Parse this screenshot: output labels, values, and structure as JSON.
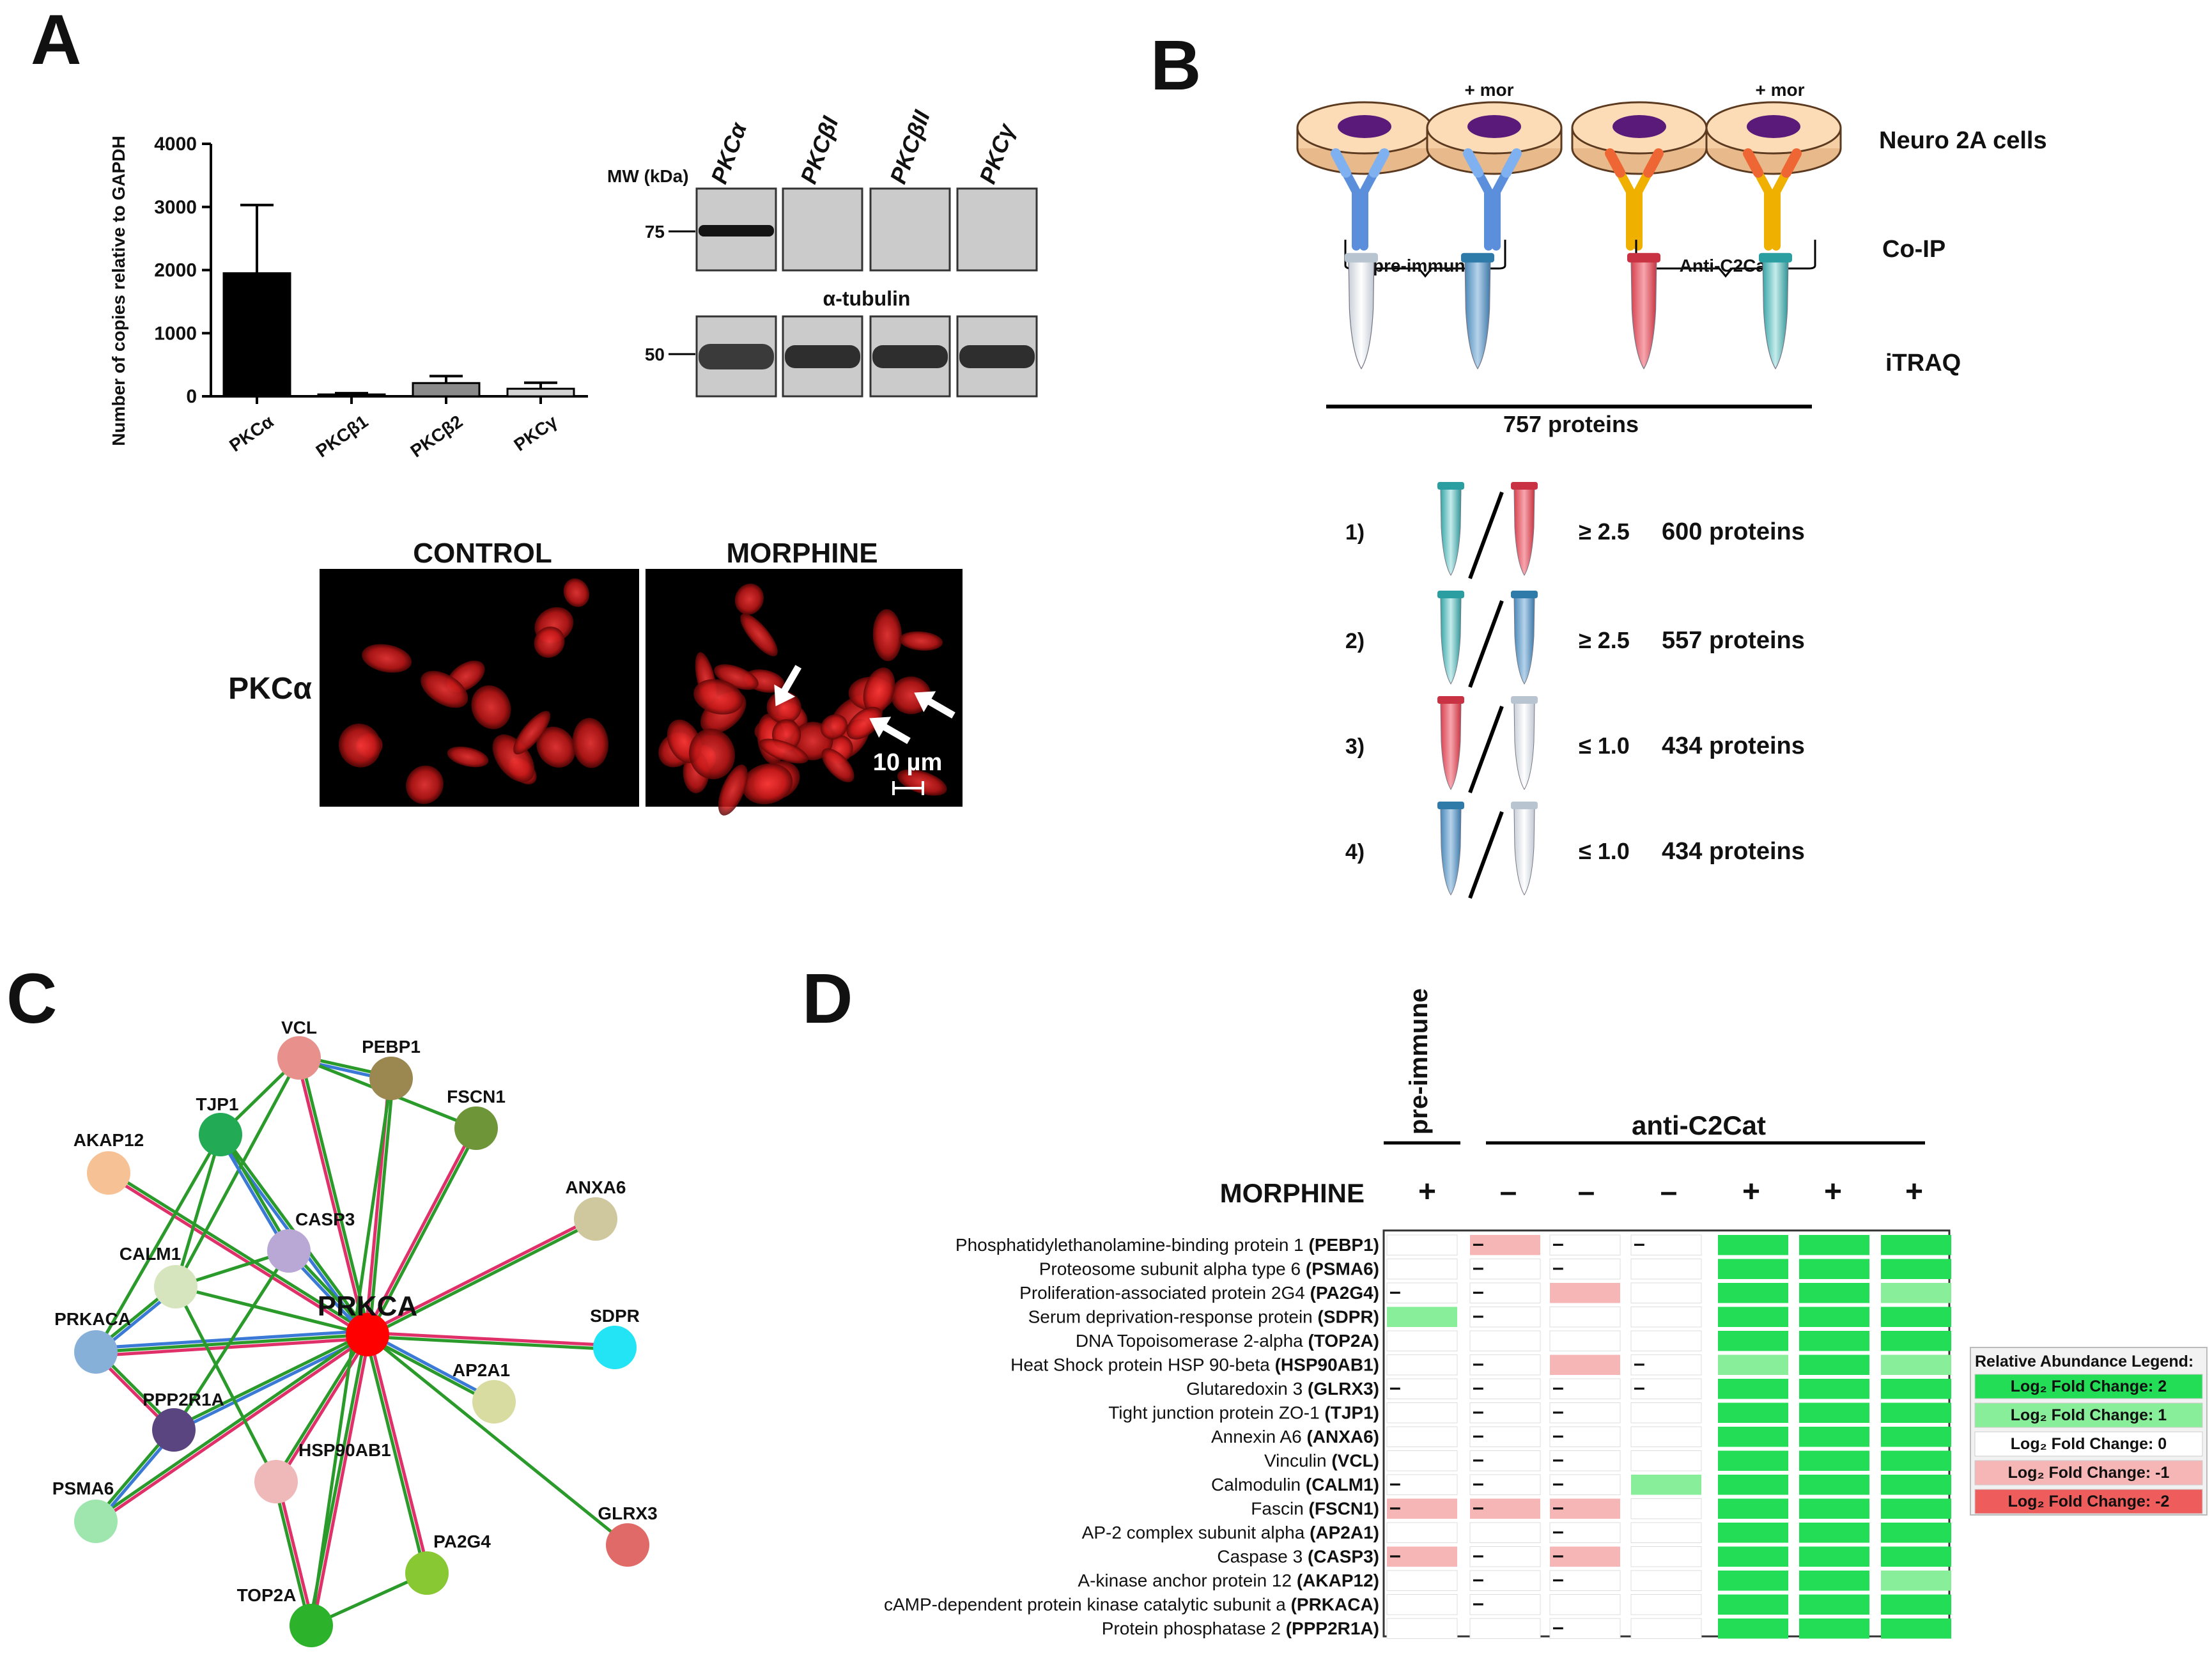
{
  "panel_letters": {
    "a": "A",
    "b": "B",
    "c": "C",
    "d": "D"
  },
  "chart_data": {
    "type": "bar",
    "title": "",
    "xlabel": "",
    "ylabel": "Number of copies relative to GAPDH",
    "categories": [
      "PKCα",
      "PKCβ1",
      "PKCβ2",
      "PKCγ"
    ],
    "values": [
      1950,
      30,
      210,
      120
    ],
    "errors": [
      1080,
      20,
      110,
      95
    ],
    "bar_colors": [
      "#000000",
      "#3a3a3a",
      "#8a8a8a",
      "#d4d4d4"
    ],
    "yticks": [
      "0",
      "1000",
      "2000",
      "3000",
      "4000"
    ],
    "ylim": [
      0,
      4000
    ]
  },
  "western": {
    "mw_label": "MW (kDa)",
    "lane_labels": [
      "PKCα",
      "PKCβI",
      "PKCβII",
      "PKCγ"
    ],
    "marker_top": "75",
    "marker_bottom": "50",
    "loading_label": "α-tubulin"
  },
  "micro": {
    "control_label": "CONTROL",
    "morphine_label": "MORPHINE",
    "row_label": "PKCα",
    "scale_label": "10 µm"
  },
  "schematic": {
    "mor_label_1": "+ mor",
    "mor_label_2": "+ mor",
    "preimmune_label": "pre-immune",
    "antic2cat_label": "Anti-C2Cat",
    "row_neuro": "Neuro 2A cells",
    "row_coip": "Co-IP",
    "row_itraq": "iTRAQ",
    "total_label": "757 proteins",
    "comparisons": [
      {
        "num": "1)",
        "op": "≥ 2.5",
        "count": "600 proteins"
      },
      {
        "num": "2)",
        "op": "≥ 2.5",
        "count": "557 proteins"
      },
      {
        "num": "3)",
        "op": "≤ 1.0",
        "count": "434 proteins"
      },
      {
        "num": "4)",
        "op": "≤ 1.0",
        "count": "434 proteins"
      }
    ]
  },
  "network": {
    "center": "PRKCA",
    "nodes": [
      {
        "name": "VCL",
        "color": "#e8908c"
      },
      {
        "name": "PEBP1",
        "color": "#9a8850"
      },
      {
        "name": "TJP1",
        "color": "#22aa55"
      },
      {
        "name": "FSCN1",
        "color": "#6e9638"
      },
      {
        "name": "AKAP12",
        "color": "#f6c195"
      },
      {
        "name": "ANXA6",
        "color": "#cfc79d"
      },
      {
        "name": "CASP3",
        "color": "#b9a7d6"
      },
      {
        "name": "CALM1",
        "color": "#d6e5be"
      },
      {
        "name": "PRKACA",
        "color": "#87b0d9"
      },
      {
        "name": "SDPR",
        "color": "#22e4f4"
      },
      {
        "name": "AP2A1",
        "color": "#d8dca0"
      },
      {
        "name": "PPP2R1A",
        "color": "#5b4580"
      },
      {
        "name": "PSMA6",
        "color": "#9ee6ae"
      },
      {
        "name": "HSP90AB1",
        "color": "#f0b9b9"
      },
      {
        "name": "GLRX3",
        "color": "#e06a68"
      },
      {
        "name": "PA2G4",
        "color": "#88c832"
      },
      {
        "name": "TOP2A",
        "color": "#2db22b"
      }
    ]
  },
  "heatmap": {
    "preimmune_header": "pre-immune",
    "antic2cat_header": "anti-C2Cat",
    "morphine_label": "MORPHINE",
    "morphine_signs": [
      "+",
      "–",
      "–",
      "–",
      "+",
      "+",
      "+"
    ],
    "dash": "–",
    "rows": [
      {
        "name": "Phosphatidylethanolamine-binding protein 1",
        "gene": "(PEBP1)",
        "cells": [
          0,
          -1,
          0,
          0,
          2,
          2,
          2
        ],
        "dash": [
          0,
          1,
          1,
          1,
          0,
          0,
          0
        ]
      },
      {
        "name": "Proteosome subunit alpha type 6",
        "gene": "(PSMA6)",
        "cells": [
          0,
          0,
          0,
          0,
          2,
          2,
          2
        ],
        "dash": [
          0,
          1,
          1,
          0,
          0,
          0,
          0
        ]
      },
      {
        "name": "Proliferation-associated protein 2G4",
        "gene": "(PA2G4)",
        "cells": [
          0,
          0,
          -1,
          0,
          2,
          2,
          1
        ],
        "dash": [
          1,
          1,
          0,
          0,
          0,
          0,
          0
        ]
      },
      {
        "name": "Serum deprivation-response protein",
        "gene": "(SDPR)",
        "cells": [
          1,
          0,
          0,
          0,
          2,
          2,
          2
        ],
        "dash": [
          0,
          1,
          0,
          0,
          0,
          0,
          0
        ]
      },
      {
        "name": "DNA Topoisomerase 2-alpha",
        "gene": "(TOP2A)",
        "cells": [
          0,
          0,
          0,
          0,
          2,
          2,
          2
        ],
        "dash": [
          0,
          0,
          0,
          0,
          0,
          0,
          0
        ]
      },
      {
        "name": "Heat Shock protein HSP 90-beta",
        "gene": "(HSP90AB1)",
        "cells": [
          0,
          0,
          -1,
          0,
          1,
          2,
          1
        ],
        "dash": [
          0,
          1,
          0,
          1,
          0,
          0,
          0
        ]
      },
      {
        "name": "Glutaredoxin 3",
        "gene": "(GLRX3)",
        "cells": [
          0,
          0,
          0,
          0,
          2,
          2,
          2
        ],
        "dash": [
          1,
          1,
          1,
          1,
          0,
          0,
          0
        ]
      },
      {
        "name": "Tight junction protein ZO-1",
        "gene": "(TJP1)",
        "cells": [
          0,
          0,
          0,
          0,
          2,
          2,
          2
        ],
        "dash": [
          0,
          1,
          1,
          0,
          0,
          0,
          0
        ]
      },
      {
        "name": "Annexin A6",
        "gene": "(ANXA6)",
        "cells": [
          0,
          0,
          0,
          0,
          2,
          2,
          2
        ],
        "dash": [
          0,
          1,
          1,
          0,
          0,
          0,
          0
        ]
      },
      {
        "name": "Vinculin",
        "gene": "(VCL)",
        "cells": [
          0,
          0,
          0,
          0,
          2,
          2,
          2
        ],
        "dash": [
          0,
          1,
          1,
          0,
          0,
          0,
          0
        ]
      },
      {
        "name": "Calmodulin",
        "gene": "(CALM1)",
        "cells": [
          0,
          0,
          0,
          1,
          2,
          2,
          2
        ],
        "dash": [
          1,
          1,
          1,
          0,
          0,
          0,
          0
        ]
      },
      {
        "name": "Fascin",
        "gene": "(FSCN1)",
        "cells": [
          -1,
          -1,
          -1,
          0,
          2,
          2,
          2
        ],
        "dash": [
          1,
          1,
          1,
          0,
          0,
          0,
          0
        ]
      },
      {
        "name": "AP-2 complex subunit alpha",
        "gene": "(AP2A1)",
        "cells": [
          0,
          0,
          0,
          0,
          2,
          2,
          2
        ],
        "dash": [
          0,
          0,
          1,
          0,
          0,
          0,
          0
        ]
      },
      {
        "name": "Caspase 3",
        "gene": "(CASP3)",
        "cells": [
          -1,
          0,
          -1,
          0,
          2,
          2,
          2
        ],
        "dash": [
          1,
          1,
          1,
          0,
          0,
          0,
          0
        ]
      },
      {
        "name": "A-kinase anchor protein 12",
        "gene": "(AKAP12)",
        "cells": [
          0,
          0,
          0,
          0,
          2,
          2,
          1
        ],
        "dash": [
          0,
          1,
          1,
          0,
          0,
          0,
          0
        ]
      },
      {
        "name": "cAMP-dependent protein kinase catalytic subunit a",
        "gene": "(PRKACA)",
        "cells": [
          0,
          0,
          0,
          0,
          2,
          2,
          2
        ],
        "dash": [
          0,
          1,
          0,
          0,
          0,
          0,
          0
        ]
      },
      {
        "name": "Protein phosphatase 2",
        "gene": "(PPP2R1A)",
        "cells": [
          0,
          0,
          0,
          0,
          2,
          2,
          2
        ],
        "dash": [
          0,
          0,
          1,
          0,
          0,
          0,
          0
        ]
      }
    ],
    "legend": {
      "title": "Relative Abundance Legend:",
      "items": [
        {
          "label": "Log₂ Fold Change: 2",
          "color": "#22dd55"
        },
        {
          "label": "Log₂ Fold Change: 1",
          "color": "#88ee99"
        },
        {
          "label": "Log₂ Fold Change: 0",
          "color": "#ffffff"
        },
        {
          "label": "Log₂ Fold Change: -1",
          "color": "#f6b6b6"
        },
        {
          "label": "Log₂ Fold Change: -2",
          "color": "#ee5c5c"
        }
      ]
    }
  }
}
